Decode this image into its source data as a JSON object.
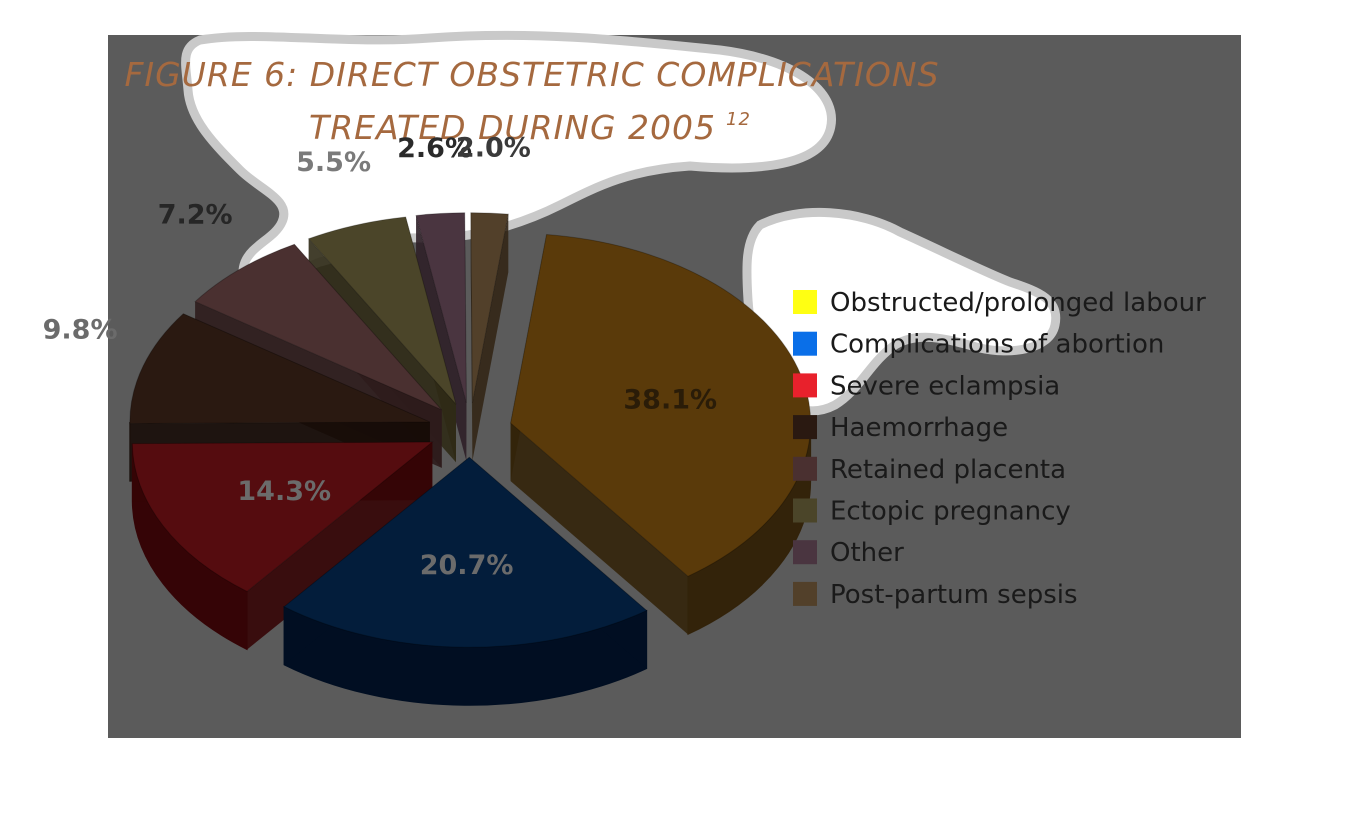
{
  "chart_data": {
    "type": "pie",
    "title": "FIGURE 6: DIRECT OBSTETRIC COMPLICATIONS TREATED DURING 2005",
    "title_lines": [
      "FIGURE 6: DIRECT OBSTETRIC COMPLICATIONS",
      "TREATED DURING 2005"
    ],
    "title_superscript": "12",
    "slices": [
      {
        "label": "Obstructed/prolonged labour",
        "value": 38.1,
        "value_label": "38.1%",
        "color": "#5a3a0a",
        "side": "#33230a"
      },
      {
        "label": "Complications of abortion",
        "value": 20.7,
        "value_label": "20.7%",
        "color": "#031d3b",
        "side": "#010e22"
      },
      {
        "label": "Severe eclampsia",
        "value": 14.3,
        "value_label": "14.3%",
        "color": "#550c0f",
        "side": "#350406"
      },
      {
        "label": "Haemorrhage",
        "value": 9.8,
        "value_label": "9.8%",
        "color": "#2a1911",
        "side": "#170c08"
      },
      {
        "label": "Retained placenta",
        "value": 7.2,
        "value_label": "7.2%",
        "color": "#4a3030",
        "side": "#2e1c1c"
      },
      {
        "label": "Ectopic pregnancy",
        "value": 5.5,
        "value_label": "5.5%",
        "color": "#4b4529",
        "side": "#2f2a16"
      },
      {
        "label": "Other",
        "value": 2.6,
        "value_label": "2.6%",
        "color": "#4a3540",
        "side": "#2d1f27"
      },
      {
        "label": "Post-partum sepsis",
        "value": 2.0,
        "value_label": "2.0%",
        "color": "#52402a",
        "side": "#332616"
      }
    ],
    "legend": {
      "position": "right",
      "items": [
        {
          "label": "Obstructed/prolonged labour",
          "color": "#ffff12"
        },
        {
          "label": "Complications of abortion",
          "color": "#0a6fe8"
        },
        {
          "label": "Severe eclampsia",
          "color": "#e8212c"
        },
        {
          "label": "Haemorrhage",
          "color": "#2a1911"
        },
        {
          "label": "Retained placenta",
          "color": "#4a3030"
        },
        {
          "label": "Ectopic pregnancy",
          "color": "#4b4529"
        },
        {
          "label": "Other",
          "color": "#4a3540"
        },
        {
          "label": "Post-partum sepsis",
          "color": "#52402a"
        }
      ]
    }
  }
}
